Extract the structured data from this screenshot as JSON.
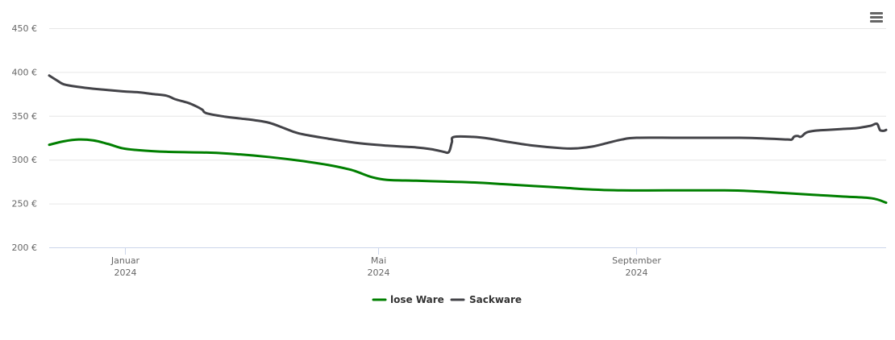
{
  "menu": {
    "icon": "hamburger-menu-icon"
  },
  "chart_data": {
    "type": "line",
    "title": "",
    "xlabel": "",
    "ylabel": "",
    "ylim": [
      200,
      450
    ],
    "y_ticks": [
      "200 €",
      "250 €",
      "300 €",
      "350 €",
      "400 €",
      "450 €"
    ],
    "x_ticks": [
      {
        "date": "2024-01-01",
        "month": "Januar",
        "year": "2024"
      },
      {
        "date": "2024-05-01",
        "month": "Mai",
        "year": "2024"
      },
      {
        "date": "2024-09-01",
        "month": "September",
        "year": "2024"
      }
    ],
    "xlim": [
      "2023-11-26",
      "2024-12-29"
    ],
    "grid": true,
    "legend": "bottom-center",
    "series": [
      {
        "name": "lose Ware",
        "color": "#007f00",
        "points": [
          [
            "2023-11-26",
            317
          ],
          [
            "2023-12-03",
            321
          ],
          [
            "2023-12-10",
            323
          ],
          [
            "2023-12-17",
            322
          ],
          [
            "2023-12-24",
            318
          ],
          [
            "2023-12-31",
            313
          ],
          [
            "2024-01-07",
            311
          ],
          [
            "2024-01-21",
            309
          ],
          [
            "2024-02-11",
            308
          ],
          [
            "2024-02-25",
            306
          ],
          [
            "2024-03-10",
            303
          ],
          [
            "2024-03-24",
            299
          ],
          [
            "2024-04-07",
            294
          ],
          [
            "2024-04-17",
            289
          ],
          [
            "2024-04-21",
            286
          ],
          [
            "2024-04-28",
            280
          ],
          [
            "2024-05-05",
            277
          ],
          [
            "2024-05-19",
            276
          ],
          [
            "2024-06-02",
            275
          ],
          [
            "2024-06-16",
            274
          ],
          [
            "2024-06-30",
            272
          ],
          [
            "2024-07-14",
            270
          ],
          [
            "2024-07-28",
            268
          ],
          [
            "2024-08-11",
            266
          ],
          [
            "2024-08-25",
            265
          ],
          [
            "2024-09-15",
            265
          ],
          [
            "2024-10-13",
            265
          ],
          [
            "2024-10-27",
            264
          ],
          [
            "2024-11-10",
            262
          ],
          [
            "2024-11-24",
            260
          ],
          [
            "2024-12-08",
            258
          ],
          [
            "2024-12-22",
            256
          ],
          [
            "2024-12-29",
            251
          ]
        ]
      },
      {
        "name": "Sackware",
        "color": "#434348",
        "points": [
          [
            "2023-11-26",
            396
          ],
          [
            "2023-11-30",
            390
          ],
          [
            "2023-12-03",
            386
          ],
          [
            "2023-12-10",
            383
          ],
          [
            "2023-12-17",
            381
          ],
          [
            "2023-12-31",
            378
          ],
          [
            "2024-01-07",
            377
          ],
          [
            "2024-01-14",
            375
          ],
          [
            "2024-01-21",
            373
          ],
          [
            "2024-01-25",
            369
          ],
          [
            "2024-01-31",
            365
          ],
          [
            "2024-02-04",
            361
          ],
          [
            "2024-02-07",
            357
          ],
          [
            "2024-02-09",
            353
          ],
          [
            "2024-02-18",
            349
          ],
          [
            "2024-02-25",
            347
          ],
          [
            "2024-03-03",
            345
          ],
          [
            "2024-03-10",
            342
          ],
          [
            "2024-03-17",
            336
          ],
          [
            "2024-03-24",
            330
          ],
          [
            "2024-04-07",
            324
          ],
          [
            "2024-04-21",
            319
          ],
          [
            "2024-05-05",
            316
          ],
          [
            "2024-05-19",
            314
          ],
          [
            "2024-05-26",
            312
          ],
          [
            "2024-06-01",
            309
          ],
          [
            "2024-06-03",
            308
          ],
          [
            "2024-06-04",
            311
          ],
          [
            "2024-06-05",
            320
          ],
          [
            "2024-06-06",
            326
          ],
          [
            "2024-06-15",
            326
          ],
          [
            "2024-06-23",
            324
          ],
          [
            "2024-06-30",
            321
          ],
          [
            "2024-07-14",
            316
          ],
          [
            "2024-07-28",
            313
          ],
          [
            "2024-08-04",
            313
          ],
          [
            "2024-08-11",
            315
          ],
          [
            "2024-08-18",
            319
          ],
          [
            "2024-08-25",
            323
          ],
          [
            "2024-09-01",
            325
          ],
          [
            "2024-09-22",
            325
          ],
          [
            "2024-10-20",
            325
          ],
          [
            "2024-11-03",
            324
          ],
          [
            "2024-11-12",
            323
          ],
          [
            "2024-11-14",
            323
          ],
          [
            "2024-11-15",
            326
          ],
          [
            "2024-11-16",
            327
          ],
          [
            "2024-11-17",
            327
          ],
          [
            "2024-11-18",
            326
          ],
          [
            "2024-11-19",
            327
          ],
          [
            "2024-11-21",
            331
          ],
          [
            "2024-11-25",
            333
          ],
          [
            "2024-12-01",
            334
          ],
          [
            "2024-12-08",
            335
          ],
          [
            "2024-12-15",
            336
          ],
          [
            "2024-12-20",
            338
          ],
          [
            "2024-12-22",
            339
          ],
          [
            "2024-12-24",
            341
          ],
          [
            "2024-12-25",
            340
          ],
          [
            "2024-12-26",
            334
          ],
          [
            "2024-12-27",
            333
          ],
          [
            "2024-12-28",
            333
          ],
          [
            "2024-12-29",
            334
          ]
        ]
      }
    ]
  }
}
